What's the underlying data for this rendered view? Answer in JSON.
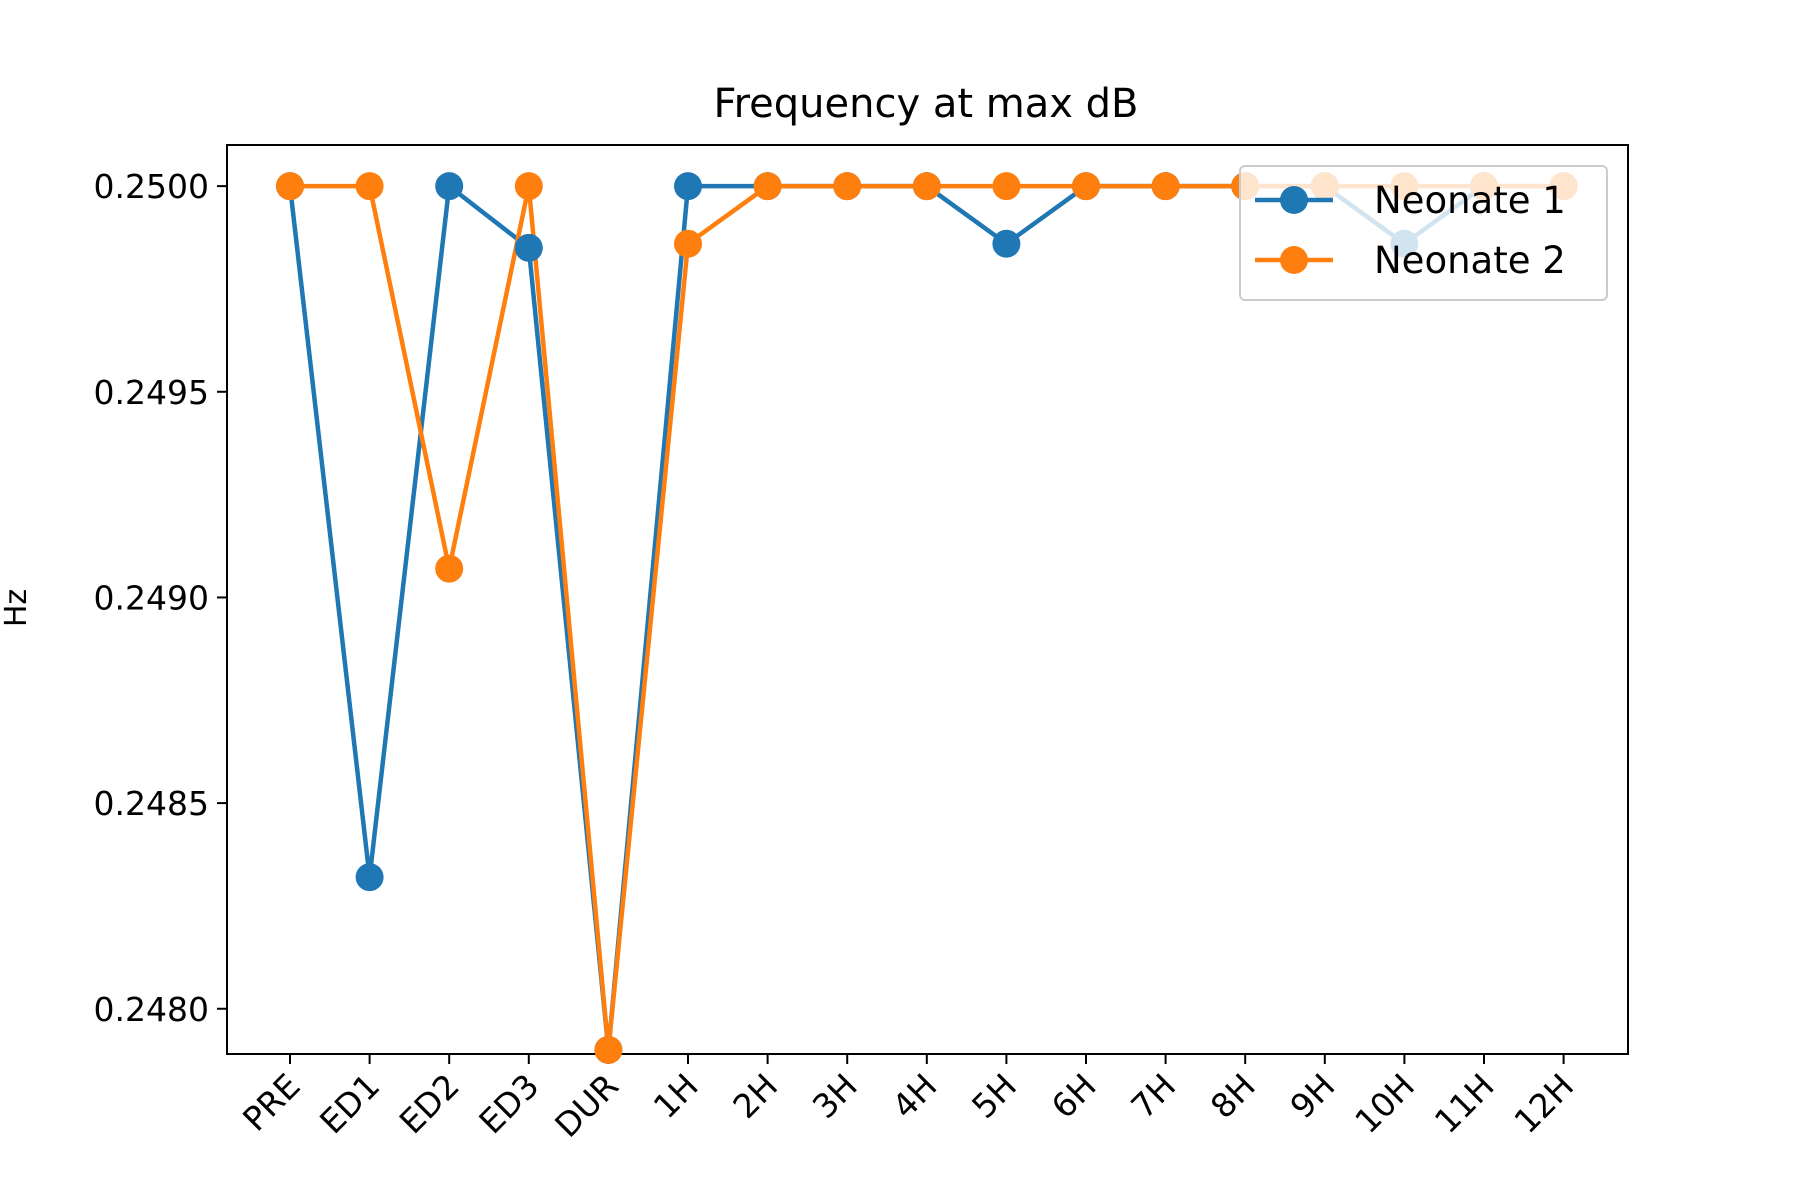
{
  "chart_data": {
    "type": "line",
    "title": "Frequency at max dB",
    "xlabel": "",
    "ylabel": "Hz",
    "categories": [
      "PRE",
      "ED1",
      "ED2",
      "ED3",
      "DUR",
      "1H",
      "2H",
      "3H",
      "4H",
      "5H",
      "6H",
      "7H",
      "8H",
      "9H",
      "10H",
      "11H",
      "12H"
    ],
    "ylim": [
      0.24789,
      0.2501
    ],
    "yticks": [
      0.248,
      0.2485,
      0.249,
      0.2495,
      0.25
    ],
    "ytick_labels": [
      "0.2480",
      "0.2485",
      "0.2490",
      "0.2495",
      "0.2500"
    ],
    "grid": false,
    "legend_position": "top-right",
    "series": [
      {
        "name": "Neonate 1",
        "color": "#1f77b4",
        "values": [
          0.25,
          0.24832,
          0.25,
          0.24985,
          0.2479,
          0.25,
          0.25,
          0.25,
          0.25,
          0.24986,
          0.25,
          0.25,
          0.25,
          0.25,
          0.24986,
          0.25,
          0.25
        ]
      },
      {
        "name": "Neonate 2",
        "color": "#ff7f0e",
        "values": [
          0.25,
          0.25,
          0.24907,
          0.25,
          0.2479,
          0.24986,
          0.25,
          0.25,
          0.25,
          0.25,
          0.25,
          0.25,
          0.25,
          0.25,
          0.25,
          0.25,
          0.25
        ]
      }
    ]
  }
}
